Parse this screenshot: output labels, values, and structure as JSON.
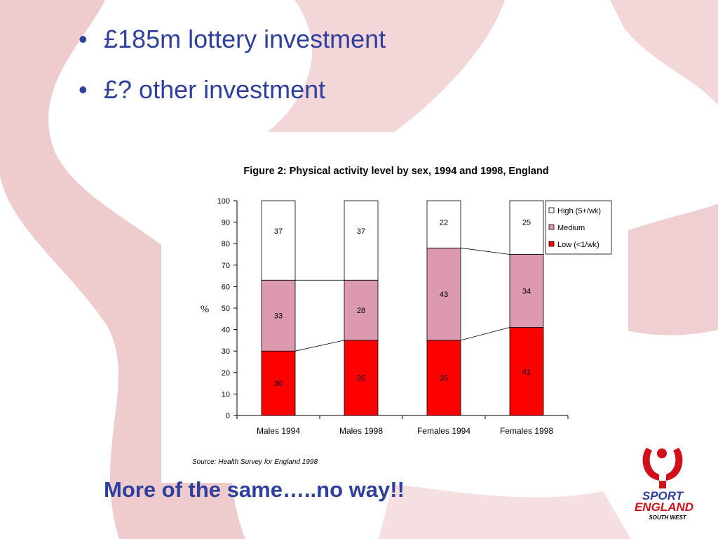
{
  "slide": {
    "bullets": [
      "£185m lottery investment",
      "£? other investment"
    ],
    "bullet_glyph": "•",
    "tagline": "More of the same…..no way!!",
    "logo": {
      "line1": "SPORT",
      "line2": "ENGLAND",
      "line3": "SOUTH WEST"
    },
    "colors": {
      "text": "#2e3f9e",
      "logo_red": "#d0101a",
      "ribbon": "#e9b9bd"
    }
  },
  "chart_data": {
    "type": "bar",
    "stacked": true,
    "title": "Figure 2: Physical activity level by sex, 1994 and 1998, England",
    "ylabel": "%",
    "xlabel": "",
    "ylim": [
      0,
      100
    ],
    "yticks": [
      0,
      10,
      20,
      30,
      40,
      50,
      60,
      70,
      80,
      90,
      100
    ],
    "categories": [
      "Males 1994",
      "Males 1998",
      "Females 1994",
      "Females 1998"
    ],
    "series": [
      {
        "name": "Low (<1/wk)",
        "values": [
          30,
          35,
          35,
          41
        ],
        "color": "#ff0000"
      },
      {
        "name": "Medium",
        "values": [
          33,
          28,
          43,
          34
        ],
        "color": "#dd99b0"
      },
      {
        "name": "High (5+/wk)",
        "values": [
          37,
          37,
          22,
          25
        ],
        "color": "#ffffff"
      }
    ],
    "legend_order": [
      "High (5+/wk)",
      "Medium",
      "Low (<1/wk)"
    ],
    "legend_position": "right",
    "source": "Source: Health Survey for England 1998",
    "grid": false
  }
}
